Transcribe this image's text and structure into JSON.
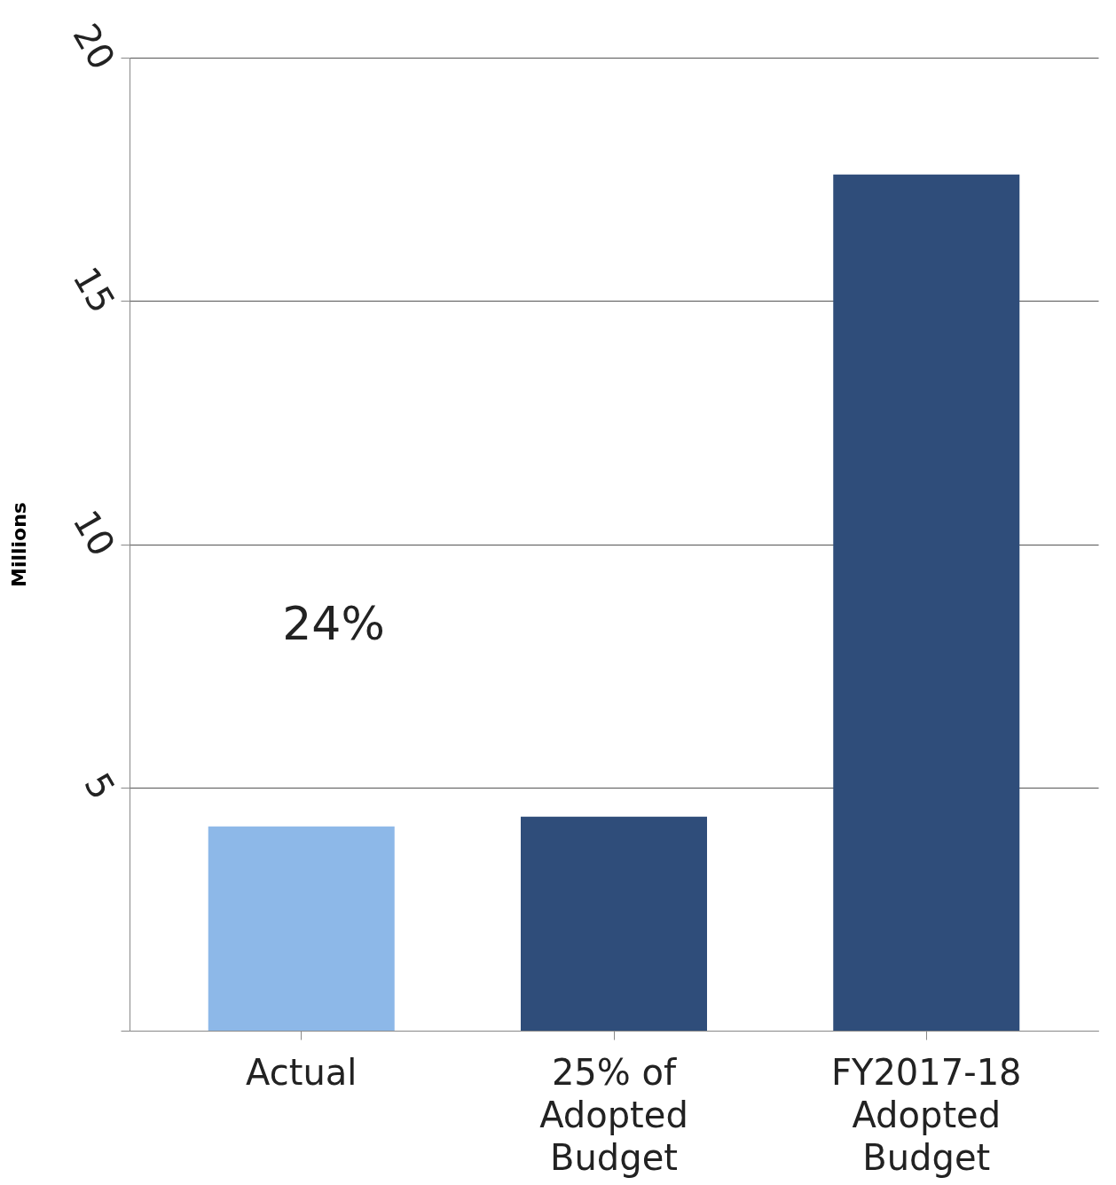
{
  "chart_data": {
    "type": "bar",
    "categories": [
      "Actual",
      "25% of\nAdopted\nBudget",
      "FY2017-18\nAdopted\nBudget"
    ],
    "values": [
      4.2,
      4.4,
      17.6
    ],
    "colors": [
      "#8db8e8",
      "#2f4d7a",
      "#2f4d7a"
    ],
    "ylabel": "Millions",
    "ylim": [
      0,
      20
    ],
    "yticks": [
      {
        "value": 0,
        "label": null
      },
      5,
      10,
      15,
      20
    ],
    "grid": "y",
    "annotations": [
      "24%"
    ]
  }
}
